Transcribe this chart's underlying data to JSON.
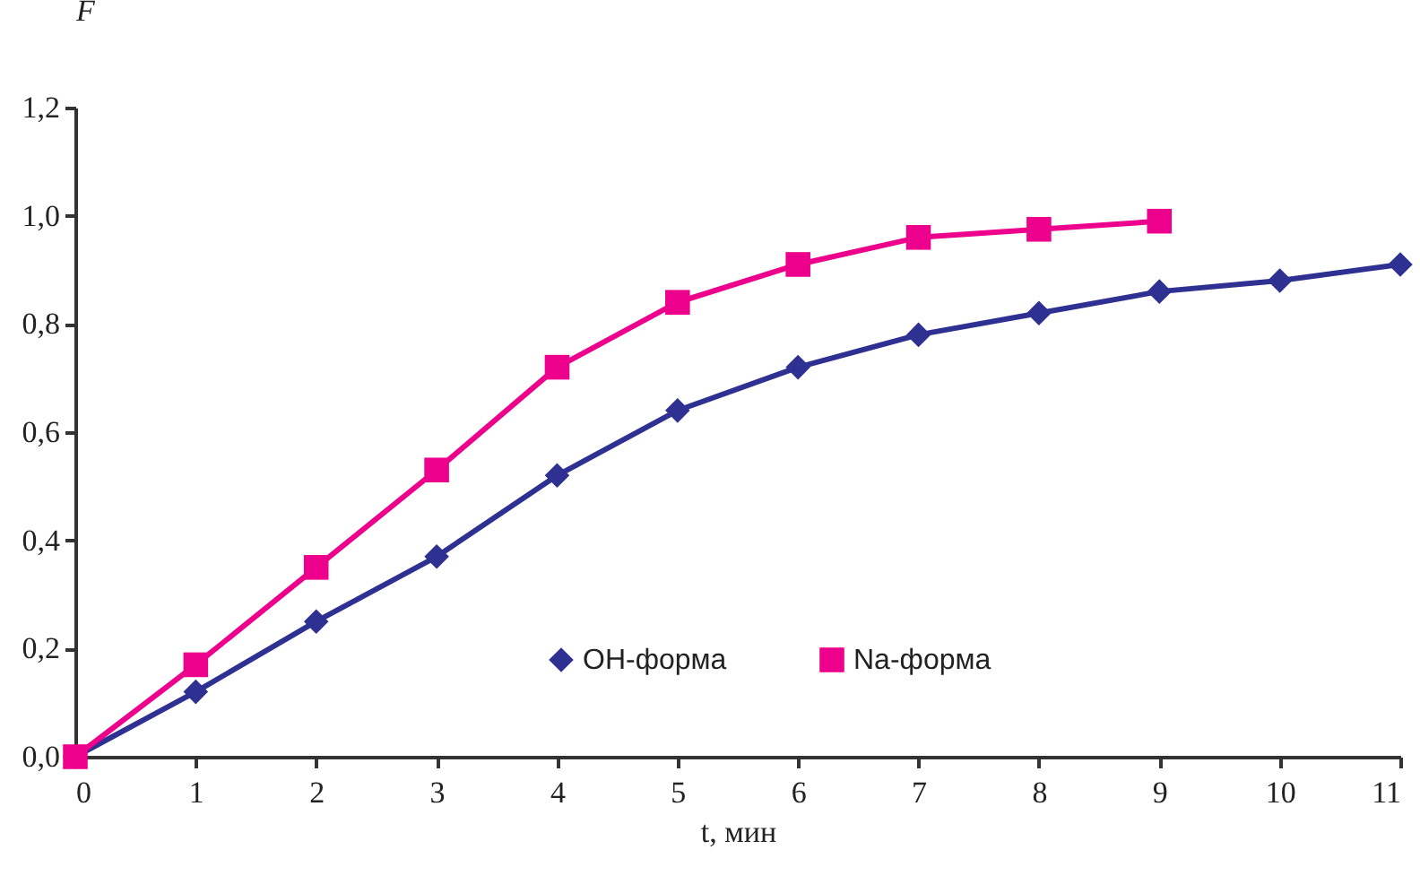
{
  "chart_data": {
    "type": "line",
    "xlabel": "t, мин",
    "ylabel": "F",
    "x": [
      0,
      1,
      2,
      3,
      4,
      5,
      6,
      7,
      8,
      9,
      10,
      11
    ],
    "series": [
      {
        "name": "OH-форма",
        "color": "#2e3192",
        "marker": "diamond",
        "values": [
          0,
          0.12,
          0.25,
          0.37,
          0.52,
          0.64,
          0.72,
          0.78,
          0.82,
          0.86,
          0.88,
          0.91
        ]
      },
      {
        "name": "Na-форма",
        "color": "#ec008c",
        "marker": "square",
        "values": [
          0,
          0.17,
          0.35,
          0.53,
          0.72,
          0.84,
          0.91,
          0.96,
          0.975,
          0.99,
          null,
          null
        ]
      }
    ],
    "xlim": [
      0,
      11
    ],
    "xticks": [
      0,
      1,
      2,
      3,
      4,
      5,
      6,
      7,
      8,
      9,
      10,
      11
    ],
    "ylim": [
      0,
      1.2
    ],
    "yticks": [
      {
        "value": 0,
        "label": "0,0"
      },
      {
        "value": 0.2,
        "label": "0,2"
      },
      {
        "value": 0.4,
        "label": "0,4"
      },
      {
        "value": 0.6,
        "label": "0,6"
      },
      {
        "value": 0.8,
        "label": "0,8"
      },
      {
        "value": 1.0,
        "label": "1,0"
      },
      {
        "value": 1.2,
        "label": "1,2"
      }
    ],
    "legend": "bottom right",
    "grid": false
  }
}
